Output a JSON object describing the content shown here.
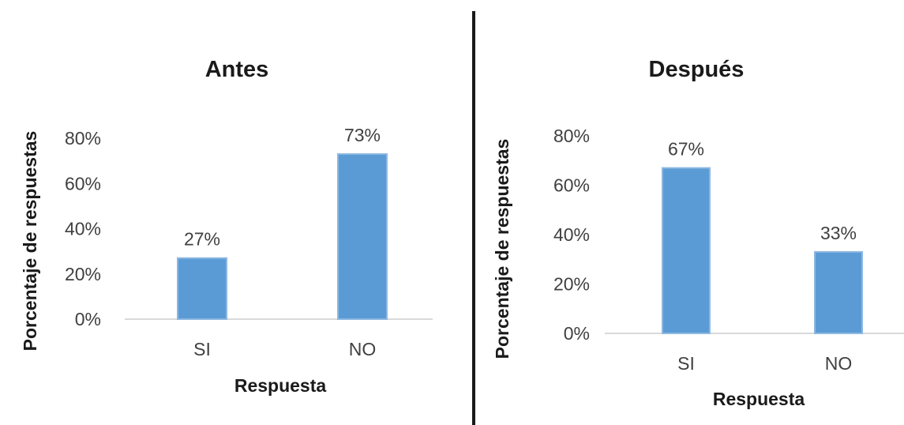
{
  "accent_color": "#5b9bd5",
  "chart_data": [
    {
      "type": "bar",
      "title": "Antes",
      "xlabel": "Respuesta",
      "ylabel": "Porcentaje de respuestas",
      "categories": [
        "SI",
        "NO"
      ],
      "values": [
        27,
        73
      ],
      "value_labels": [
        "27%",
        "73%"
      ],
      "yticks": [
        "0%",
        "20%",
        "40%",
        "60%",
        "80%"
      ],
      "ylim": [
        0,
        80
      ],
      "grid": false,
      "legend": "none"
    },
    {
      "type": "bar",
      "title": "Después",
      "xlabel": "Respuesta",
      "ylabel": "Porcentaje de respuestas",
      "categories": [
        "SI",
        "NO"
      ],
      "values": [
        67,
        33
      ],
      "value_labels": [
        "67%",
        "33%"
      ],
      "yticks": [
        "0%",
        "20%",
        "40%",
        "60%",
        "80%"
      ],
      "ylim": [
        0,
        80
      ],
      "grid": false,
      "legend": "none"
    }
  ]
}
